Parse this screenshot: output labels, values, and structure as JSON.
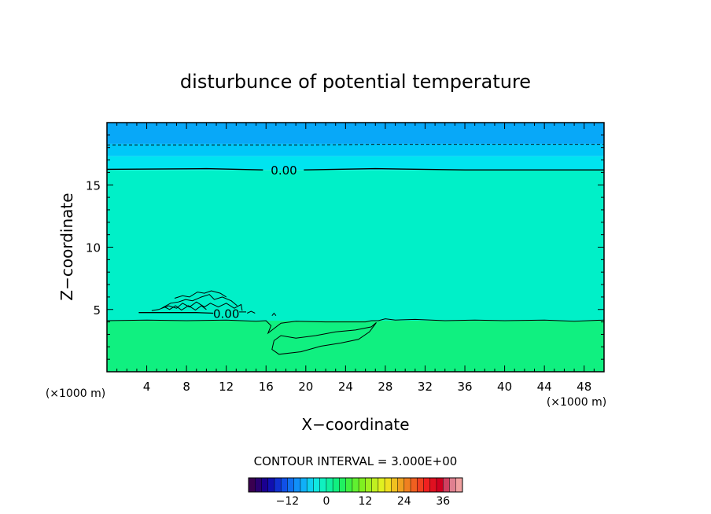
{
  "chart_data": {
    "type": "heatmap",
    "title": "disturbunce of potential temperature",
    "xlabel": "X−coordinate",
    "ylabel": "Z−coordinate",
    "x_unit_left": "(×1000 m)",
    "x_unit_right": "(×1000 m)",
    "xlim": [
      0,
      50
    ],
    "ylim": [
      0,
      20
    ],
    "x_ticks": [
      4,
      8,
      12,
      16,
      20,
      24,
      28,
      32,
      36,
      40,
      44,
      48
    ],
    "y_ticks": [
      5,
      10,
      15
    ],
    "contour_interval_label": "CONTOUR INTERVAL = 3.000E+00",
    "contour_labels": [
      {
        "text": "0.00",
        "x": 17.8,
        "z": 16.2
      },
      {
        "text": "0.00",
        "x": 12.0,
        "z": 4.7
      }
    ],
    "layers": [
      {
        "z_from": 0.0,
        "z_to": 4.1,
        "color": "#10f080"
      },
      {
        "z_from": 4.1,
        "z_to": 16.2,
        "color": "#00f0c8"
      },
      {
        "z_from": 16.2,
        "z_to": 17.3,
        "color": "#00e4f0"
      },
      {
        "z_from": 17.3,
        "z_to": 18.3,
        "color": "#00c8f8"
      },
      {
        "z_from": 18.3,
        "z_to": 20.0,
        "color": "#08a8f8"
      }
    ],
    "colorbar": {
      "tick_labels": [
        "−12",
        "0",
        "12",
        "24",
        "36"
      ],
      "tick_values": [
        -12,
        0,
        12,
        24,
        36
      ],
      "range": [
        -24,
        42
      ],
      "colors": [
        "#3a0050",
        "#2a0070",
        "#1a0090",
        "#1010b0",
        "#1030d0",
        "#1050e8",
        "#1070f0",
        "#1090f8",
        "#10b0f8",
        "#10d0f0",
        "#10e8e0",
        "#10f0c0",
        "#10f0a0",
        "#10f080",
        "#20f060",
        "#40f040",
        "#60f030",
        "#80f020",
        "#a0f020",
        "#c0f020",
        "#e0f020",
        "#f0e020",
        "#f0c020",
        "#f0a020",
        "#f08020",
        "#f06020",
        "#f04020",
        "#f02020",
        "#e01020",
        "#d00020",
        "#d04060",
        "#e08090",
        "#f0a0a0"
      ]
    }
  }
}
